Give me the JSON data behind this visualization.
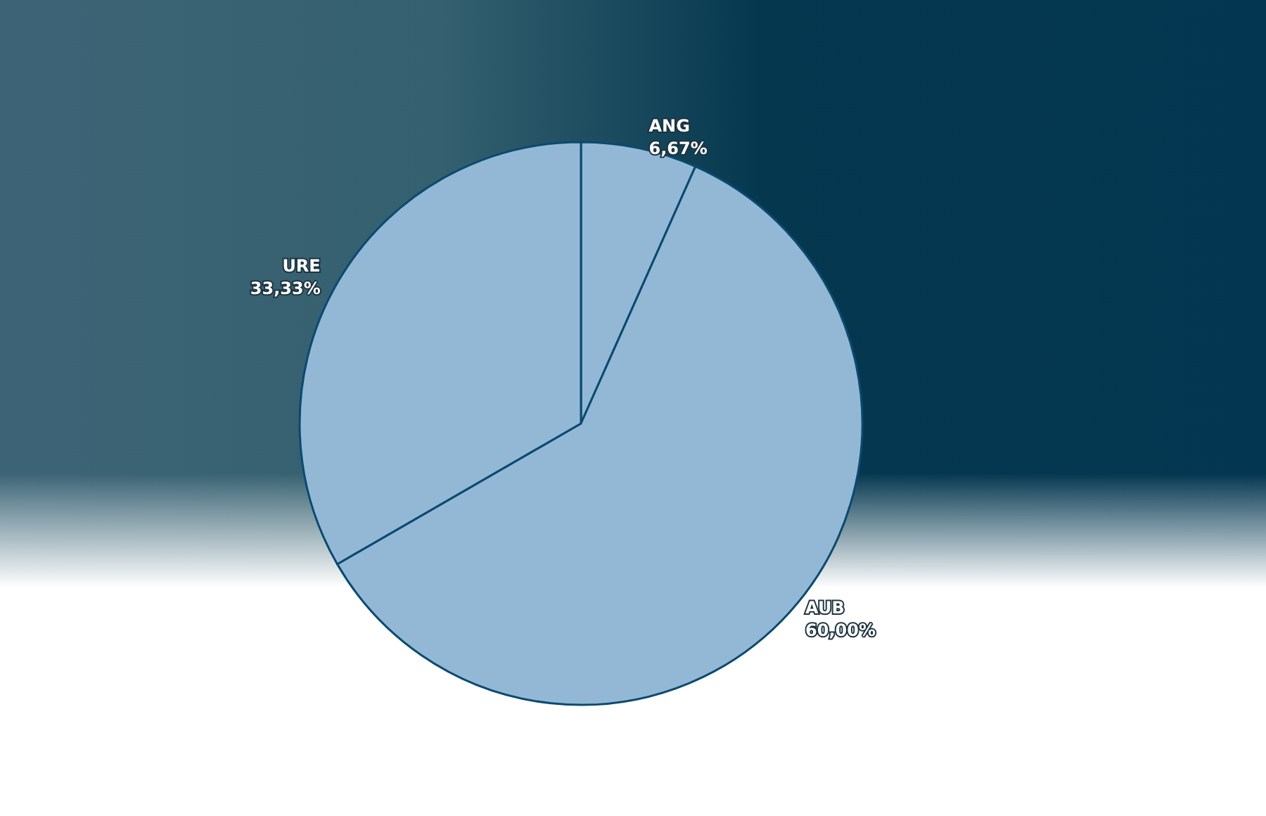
{
  "chart_data": {
    "type": "pie",
    "categories": [
      "ANG",
      "AUB",
      "URE"
    ],
    "values": [
      6.67,
      60.0,
      33.33
    ],
    "value_labels": [
      "6,67%",
      "60,00%",
      "33,33%"
    ],
    "colors": [
      "#93b8d6",
      "#93b8d6",
      "#93b8d6"
    ],
    "legend": false
  }
}
